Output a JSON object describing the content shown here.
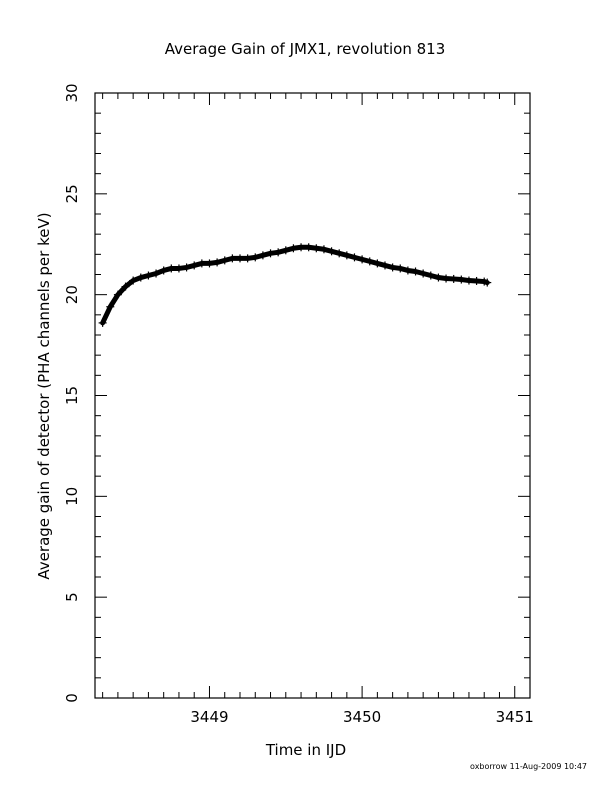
{
  "chart_data": {
    "type": "line",
    "title": "Average Gain of JMX1, revolution 813",
    "xlabel": "Time in IJD",
    "ylabel": "Average gain of detector (PHA channels per keV)",
    "xlim": [
      3448.25,
      3451.1
    ],
    "ylim": [
      0,
      30
    ],
    "x_ticks": [
      3449,
      3450,
      3451
    ],
    "y_ticks": [
      0,
      5,
      10,
      15,
      20,
      25,
      30
    ],
    "grid": false,
    "series": [
      {
        "x": [
          3448.3,
          3448.35,
          3448.4,
          3448.45,
          3448.5,
          3448.55,
          3448.6,
          3448.65,
          3448.7,
          3448.75,
          3448.8,
          3448.85,
          3448.9,
          3448.95,
          3449.0,
          3449.05,
          3449.1,
          3449.15,
          3449.2,
          3449.25,
          3449.3,
          3449.35,
          3449.4,
          3449.45,
          3449.5,
          3449.55,
          3449.6,
          3449.65,
          3449.7,
          3449.75,
          3449.8,
          3449.85,
          3449.9,
          3449.95,
          3450.0,
          3450.05,
          3450.1,
          3450.15,
          3450.2,
          3450.25,
          3450.3,
          3450.35,
          3450.4,
          3450.45,
          3450.5,
          3450.55,
          3450.6,
          3450.65,
          3450.7,
          3450.75,
          3450.8,
          3450.82
        ],
        "y": [
          18.6,
          19.4,
          20.0,
          20.4,
          20.7,
          20.85,
          20.95,
          21.05,
          21.2,
          21.3,
          21.3,
          21.35,
          21.45,
          21.55,
          21.55,
          21.6,
          21.7,
          21.8,
          21.8,
          21.8,
          21.85,
          21.95,
          22.05,
          22.1,
          22.2,
          22.3,
          22.35,
          22.35,
          22.3,
          22.25,
          22.15,
          22.05,
          21.95,
          21.85,
          21.75,
          21.65,
          21.55,
          21.45,
          21.35,
          21.3,
          21.2,
          21.15,
          21.05,
          20.95,
          20.85,
          20.8,
          20.78,
          20.75,
          20.7,
          20.68,
          20.65,
          20.6
        ]
      }
    ]
  },
  "footer": {
    "credit": "oxborrow 11-Aug-2009 10:47"
  }
}
